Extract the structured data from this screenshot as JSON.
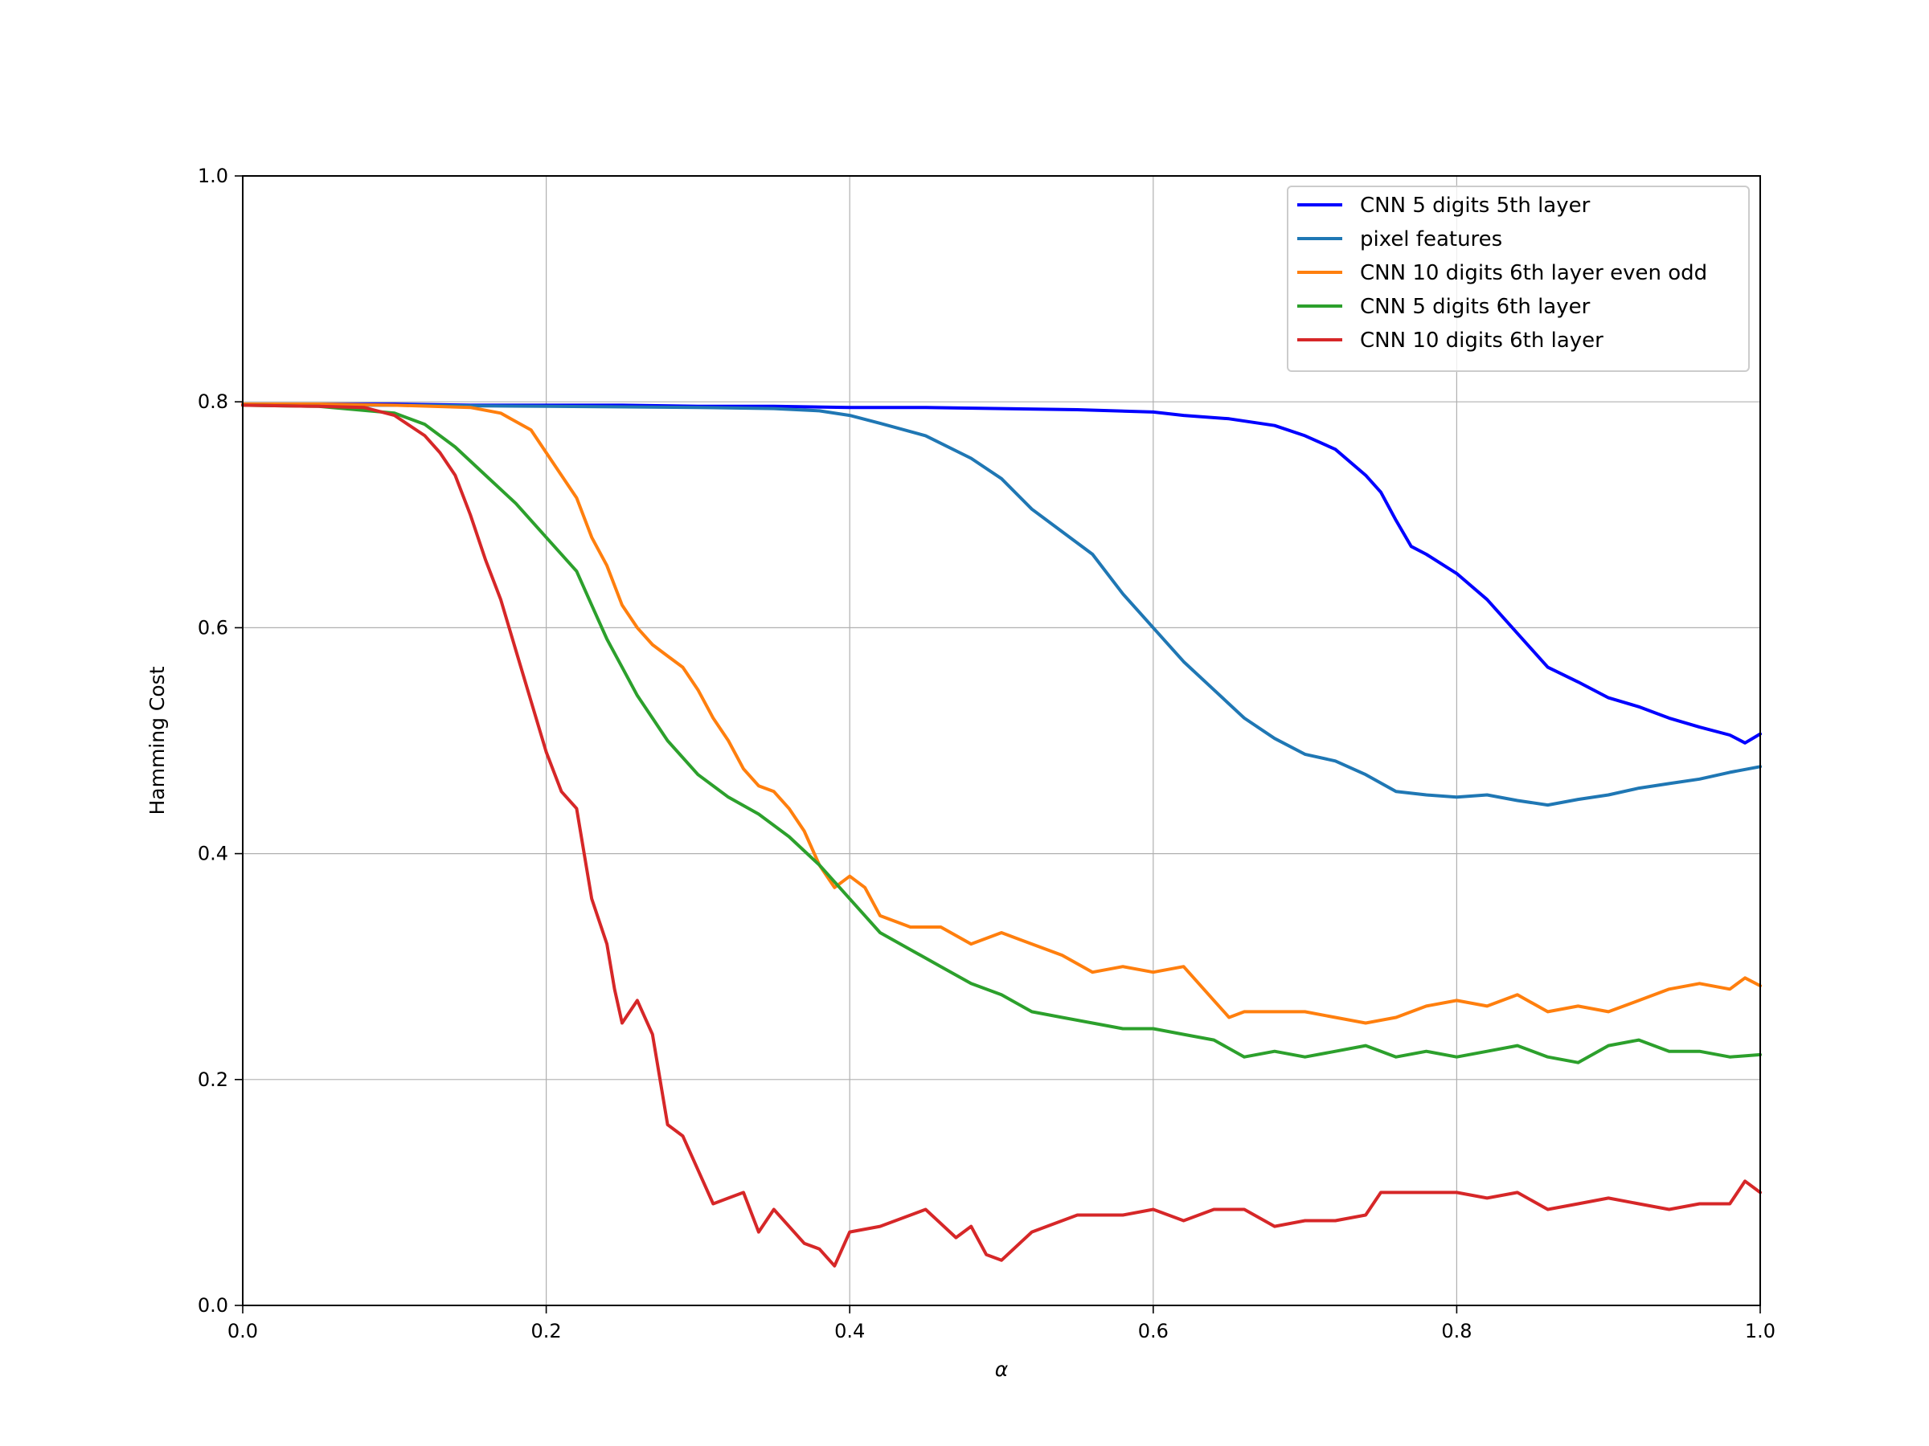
{
  "chart_data": {
    "type": "line",
    "title": "",
    "xlabel": "α",
    "ylabel": "Hamming Cost",
    "xlim": [
      0.0,
      1.0
    ],
    "ylim": [
      0.0,
      1.0
    ],
    "xticks": [
      0.0,
      0.2,
      0.4,
      0.6,
      0.8,
      1.0
    ],
    "xtick_labels": [
      "0.0",
      "0.2",
      "0.4",
      "0.6",
      "0.8",
      "1.0"
    ],
    "yticks": [
      0.0,
      0.2,
      0.4,
      0.6,
      0.8,
      1.0
    ],
    "ytick_labels": [
      "0.0",
      "0.2",
      "0.4",
      "0.6",
      "0.8",
      "1.0"
    ],
    "grid": true,
    "legend_position": "top-right",
    "series": [
      {
        "name": "CNN 5 digits 5th layer",
        "color": "#0000ff",
        "x": [
          0.0,
          0.05,
          0.1,
          0.15,
          0.2,
          0.25,
          0.3,
          0.35,
          0.4,
          0.45,
          0.5,
          0.55,
          0.6,
          0.62,
          0.65,
          0.68,
          0.7,
          0.72,
          0.74,
          0.75,
          0.76,
          0.77,
          0.78,
          0.8,
          0.82,
          0.84,
          0.86,
          0.88,
          0.9,
          0.92,
          0.94,
          0.96,
          0.98,
          0.99,
          1.0
        ],
        "y": [
          0.798,
          0.798,
          0.798,
          0.797,
          0.797,
          0.797,
          0.796,
          0.796,
          0.795,
          0.795,
          0.794,
          0.793,
          0.791,
          0.788,
          0.785,
          0.779,
          0.77,
          0.758,
          0.735,
          0.72,
          0.695,
          0.672,
          0.665,
          0.648,
          0.625,
          0.595,
          0.565,
          0.552,
          0.538,
          0.53,
          0.52,
          0.512,
          0.505,
          0.498,
          0.506
        ]
      },
      {
        "name": "pixel features",
        "color": "#1f77b4",
        "x": [
          0.0,
          0.1,
          0.2,
          0.3,
          0.35,
          0.38,
          0.4,
          0.42,
          0.45,
          0.48,
          0.5,
          0.52,
          0.54,
          0.56,
          0.58,
          0.6,
          0.62,
          0.64,
          0.66,
          0.68,
          0.7,
          0.72,
          0.74,
          0.76,
          0.78,
          0.8,
          0.82,
          0.84,
          0.86,
          0.88,
          0.9,
          0.92,
          0.94,
          0.96,
          0.98,
          1.0
        ],
        "y": [
          0.797,
          0.797,
          0.796,
          0.795,
          0.794,
          0.792,
          0.788,
          0.781,
          0.77,
          0.75,
          0.732,
          0.705,
          0.685,
          0.665,
          0.63,
          0.6,
          0.57,
          0.545,
          0.52,
          0.502,
          0.488,
          0.482,
          0.47,
          0.455,
          0.452,
          0.45,
          0.452,
          0.447,
          0.443,
          0.448,
          0.452,
          0.458,
          0.462,
          0.466,
          0.472,
          0.477
        ]
      },
      {
        "name": "CNN 10 digits 6th layer even odd",
        "color": "#ff7f0e",
        "x": [
          0.0,
          0.05,
          0.1,
          0.15,
          0.17,
          0.19,
          0.2,
          0.21,
          0.22,
          0.23,
          0.24,
          0.25,
          0.26,
          0.27,
          0.28,
          0.29,
          0.3,
          0.31,
          0.32,
          0.33,
          0.34,
          0.35,
          0.36,
          0.37,
          0.38,
          0.39,
          0.4,
          0.41,
          0.42,
          0.44,
          0.46,
          0.48,
          0.5,
          0.52,
          0.54,
          0.56,
          0.58,
          0.6,
          0.62,
          0.64,
          0.65,
          0.66,
          0.68,
          0.7,
          0.72,
          0.74,
          0.76,
          0.78,
          0.8,
          0.82,
          0.84,
          0.86,
          0.88,
          0.9,
          0.92,
          0.94,
          0.96,
          0.98,
          0.99,
          1.0
        ],
        "y": [
          0.798,
          0.798,
          0.797,
          0.795,
          0.79,
          0.775,
          0.755,
          0.735,
          0.715,
          0.68,
          0.655,
          0.62,
          0.6,
          0.585,
          0.575,
          0.565,
          0.545,
          0.52,
          0.5,
          0.475,
          0.46,
          0.455,
          0.44,
          0.42,
          0.39,
          0.37,
          0.38,
          0.37,
          0.345,
          0.335,
          0.335,
          0.32,
          0.33,
          0.32,
          0.31,
          0.295,
          0.3,
          0.295,
          0.3,
          0.27,
          0.255,
          0.26,
          0.26,
          0.26,
          0.255,
          0.25,
          0.255,
          0.265,
          0.27,
          0.265,
          0.275,
          0.26,
          0.265,
          0.26,
          0.27,
          0.28,
          0.285,
          0.28,
          0.29,
          0.283
        ]
      },
      {
        "name": "CNN 5 digits 6th layer",
        "color": "#2ca02c",
        "x": [
          0.0,
          0.05,
          0.1,
          0.12,
          0.14,
          0.16,
          0.18,
          0.2,
          0.22,
          0.23,
          0.24,
          0.25,
          0.26,
          0.27,
          0.28,
          0.3,
          0.32,
          0.34,
          0.36,
          0.38,
          0.4,
          0.42,
          0.44,
          0.46,
          0.48,
          0.5,
          0.52,
          0.54,
          0.56,
          0.58,
          0.6,
          0.62,
          0.64,
          0.66,
          0.68,
          0.7,
          0.72,
          0.74,
          0.76,
          0.78,
          0.8,
          0.82,
          0.84,
          0.86,
          0.88,
          0.9,
          0.92,
          0.94,
          0.96,
          0.98,
          1.0
        ],
        "y": [
          0.797,
          0.796,
          0.79,
          0.78,
          0.76,
          0.735,
          0.71,
          0.68,
          0.65,
          0.62,
          0.59,
          0.565,
          0.54,
          0.52,
          0.5,
          0.47,
          0.45,
          0.435,
          0.415,
          0.39,
          0.36,
          0.33,
          0.315,
          0.3,
          0.285,
          0.275,
          0.26,
          0.255,
          0.25,
          0.245,
          0.245,
          0.24,
          0.235,
          0.22,
          0.225,
          0.22,
          0.225,
          0.23,
          0.22,
          0.225,
          0.22,
          0.225,
          0.23,
          0.22,
          0.215,
          0.23,
          0.235,
          0.225,
          0.225,
          0.22,
          0.222
        ]
      },
      {
        "name": "CNN 10 digits 6th layer",
        "color": "#d62728",
        "x": [
          0.0,
          0.05,
          0.08,
          0.1,
          0.12,
          0.13,
          0.14,
          0.15,
          0.16,
          0.17,
          0.18,
          0.19,
          0.2,
          0.21,
          0.22,
          0.23,
          0.24,
          0.245,
          0.25,
          0.26,
          0.27,
          0.28,
          0.29,
          0.3,
          0.31,
          0.32,
          0.33,
          0.34,
          0.35,
          0.37,
          0.38,
          0.39,
          0.4,
          0.42,
          0.45,
          0.47,
          0.48,
          0.49,
          0.5,
          0.52,
          0.55,
          0.58,
          0.6,
          0.62,
          0.64,
          0.66,
          0.68,
          0.7,
          0.72,
          0.74,
          0.75,
          0.78,
          0.8,
          0.82,
          0.84,
          0.86,
          0.88,
          0.9,
          0.92,
          0.94,
          0.96,
          0.98,
          0.99,
          1.0
        ],
        "y": [
          0.797,
          0.796,
          0.795,
          0.788,
          0.77,
          0.755,
          0.735,
          0.7,
          0.66,
          0.625,
          0.58,
          0.535,
          0.49,
          0.455,
          0.44,
          0.36,
          0.32,
          0.28,
          0.25,
          0.27,
          0.24,
          0.16,
          0.15,
          0.12,
          0.09,
          0.095,
          0.1,
          0.065,
          0.085,
          0.055,
          0.05,
          0.035,
          0.065,
          0.07,
          0.085,
          0.06,
          0.07,
          0.045,
          0.04,
          0.065,
          0.08,
          0.08,
          0.085,
          0.075,
          0.085,
          0.085,
          0.07,
          0.075,
          0.075,
          0.08,
          0.1,
          0.1,
          0.1,
          0.095,
          0.1,
          0.085,
          0.09,
          0.095,
          0.09,
          0.085,
          0.09,
          0.09,
          0.11,
          0.1
        ]
      }
    ]
  }
}
